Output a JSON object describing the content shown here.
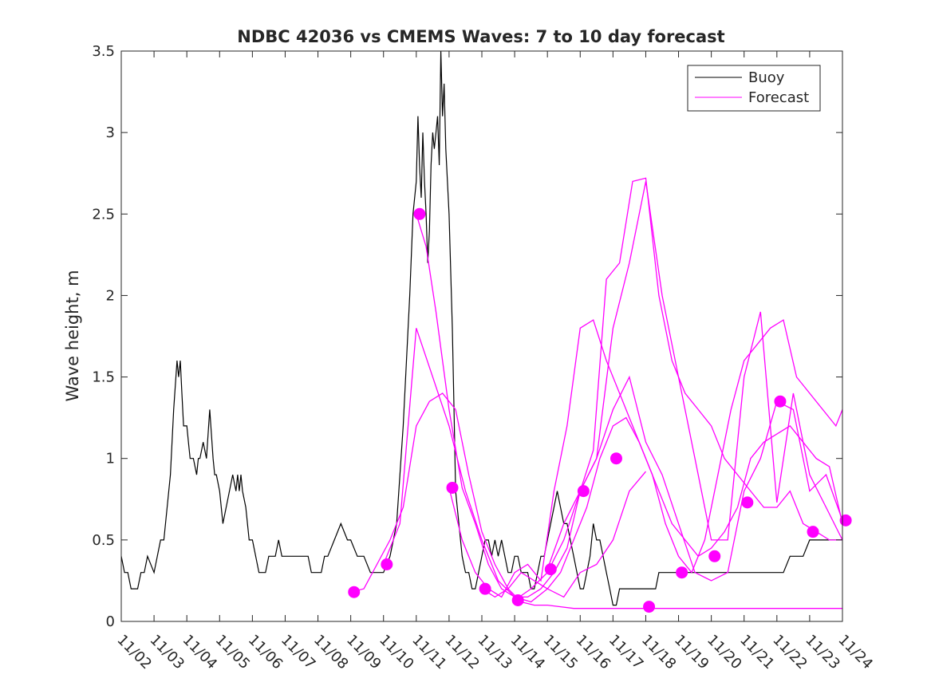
{
  "chart_data": {
    "type": "line",
    "title": "NDBC 42036 vs CMEMS Waves: 7 to 10 day forecast",
    "xlabel": "",
    "ylabel": "Wave height, m",
    "xlim": [
      0,
      22
    ],
    "ylim": [
      0,
      3.5
    ],
    "grid": false,
    "legend_location": "top-right",
    "x_ticks": [
      0,
      1,
      2,
      3,
      4,
      5,
      6,
      7,
      8,
      9,
      10,
      11,
      12,
      13,
      14,
      15,
      16,
      17,
      18,
      19,
      20,
      21,
      22
    ],
    "x_tick_labels": [
      "11/02",
      "11/03",
      "11/04",
      "11/05",
      "11/06",
      "11/07",
      "11/08",
      "11/09",
      "11/10",
      "11/11",
      "11/12",
      "11/13",
      "11/14",
      "11/15",
      "11/16",
      "11/17",
      "11/18",
      "11/19",
      "11/20",
      "11/21",
      "11/22",
      "11/23",
      "11/24"
    ],
    "y_ticks": [
      0,
      0.5,
      1,
      1.5,
      2,
      2.5,
      3,
      3.5
    ],
    "y_tick_labels": [
      "0",
      "0.5",
      "1",
      "1.5",
      "2",
      "2.5",
      "3",
      "3.5"
    ],
    "colors": {
      "buoy": "#000000",
      "forecast": "#ff00ff",
      "axes": "#262626"
    },
    "legend": [
      {
        "label": "Buoy",
        "series": "buoy"
      },
      {
        "label": "Forecast",
        "series": "forecast"
      }
    ],
    "buoy": {
      "name": "Buoy",
      "x": [
        0,
        0.1,
        0.2,
        0.3,
        0.5,
        0.6,
        0.7,
        0.8,
        1.0,
        1.1,
        1.2,
        1.3,
        1.4,
        1.5,
        1.6,
        1.7,
        1.75,
        1.8,
        1.85,
        1.9,
        2.0,
        2.05,
        2.1,
        2.2,
        2.3,
        2.35,
        2.4,
        2.5,
        2.6,
        2.7,
        2.8,
        2.85,
        2.9,
        3.0,
        3.1,
        3.2,
        3.3,
        3.4,
        3.5,
        3.55,
        3.6,
        3.65,
        3.7,
        3.8,
        3.9,
        4.0,
        4.1,
        4.2,
        4.3,
        4.4,
        4.5,
        4.6,
        4.7,
        4.8,
        4.9,
        5.0,
        5.1,
        5.2,
        5.3,
        5.4,
        5.5,
        5.6,
        5.7,
        5.8,
        5.9,
        6.0,
        6.1,
        6.2,
        6.3,
        6.5,
        6.7,
        6.9,
        7.0,
        7.2,
        7.4,
        7.6,
        7.8,
        8.0,
        8.2,
        8.4,
        8.6,
        8.8,
        8.9,
        9.0,
        9.05,
        9.1,
        9.15,
        9.2,
        9.25,
        9.3,
        9.35,
        9.4,
        9.45,
        9.5,
        9.55,
        9.6,
        9.65,
        9.7,
        9.75,
        9.8,
        9.85,
        9.9,
        10.0,
        10.1,
        10.15,
        10.2,
        10.3,
        10.4,
        10.5,
        10.6,
        10.7,
        10.8,
        10.9,
        11.0,
        11.1,
        11.2,
        11.3,
        11.4,
        11.5,
        11.6,
        11.7,
        11.8,
        11.9,
        12.0,
        12.1,
        12.2,
        12.3,
        12.4,
        12.5,
        12.6,
        12.7,
        12.8,
        12.9,
        13.0,
        13.1,
        13.2,
        13.3,
        13.4,
        13.5,
        13.6,
        13.7,
        13.8,
        13.9,
        14.0,
        14.1,
        14.2,
        14.3,
        14.4,
        14.5,
        14.6,
        14.7,
        14.8,
        14.9,
        15.0,
        15.1,
        15.2,
        15.3,
        15.4,
        15.5,
        15.6,
        15.7,
        15.8,
        15.9,
        16.0,
        16.1,
        16.2,
        16.3,
        16.4,
        16.5,
        16.6,
        16.7,
        16.8,
        16.9,
        17.0,
        17.1,
        17.2,
        17.3,
        17.4,
        17.5,
        17.6,
        17.7,
        17.8,
        17.9,
        18.0,
        18.2,
        18.4,
        18.6,
        18.8,
        19.0,
        19.2,
        19.4,
        19.6,
        19.8,
        20.0,
        20.2,
        20.4,
        20.6,
        20.8,
        21.0,
        21.2,
        21.4,
        21.6,
        21.8,
        22.0
      ],
      "y": [
        0.4,
        0.3,
        0.3,
        0.2,
        0.2,
        0.3,
        0.3,
        0.4,
        0.3,
        0.4,
        0.5,
        0.5,
        0.7,
        0.9,
        1.3,
        1.6,
        1.5,
        1.6,
        1.4,
        1.2,
        1.2,
        1.1,
        1.0,
        1.0,
        0.9,
        1.0,
        1.0,
        1.1,
        1.0,
        1.3,
        1.0,
        0.9,
        0.9,
        0.8,
        0.6,
        0.7,
        0.8,
        0.9,
        0.8,
        0.9,
        0.8,
        0.9,
        0.8,
        0.7,
        0.5,
        0.5,
        0.4,
        0.3,
        0.3,
        0.3,
        0.4,
        0.4,
        0.4,
        0.5,
        0.4,
        0.4,
        0.4,
        0.4,
        0.4,
        0.4,
        0.4,
        0.4,
        0.4,
        0.3,
        0.3,
        0.3,
        0.3,
        0.4,
        0.4,
        0.5,
        0.6,
        0.5,
        0.5,
        0.4,
        0.4,
        0.3,
        0.3,
        0.3,
        0.4,
        0.6,
        1.2,
        2.0,
        2.5,
        2.7,
        3.1,
        2.8,
        2.6,
        3.0,
        2.7,
        2.5,
        2.2,
        2.4,
        2.8,
        3.0,
        2.9,
        3.0,
        3.1,
        2.8,
        3.5,
        3.1,
        3.3,
        2.9,
        2.5,
        1.8,
        1.3,
        0.8,
        0.6,
        0.4,
        0.3,
        0.3,
        0.2,
        0.2,
        0.3,
        0.4,
        0.5,
        0.5,
        0.4,
        0.5,
        0.4,
        0.5,
        0.4,
        0.3,
        0.3,
        0.4,
        0.4,
        0.3,
        0.3,
        0.3,
        0.2,
        0.2,
        0.3,
        0.4,
        0.4,
        0.5,
        0.6,
        0.7,
        0.8,
        0.7,
        0.6,
        0.6,
        0.5,
        0.4,
        0.3,
        0.2,
        0.2,
        0.3,
        0.4,
        0.6,
        0.5,
        0.5,
        0.4,
        0.3,
        0.2,
        0.1,
        0.1,
        0.2,
        0.2,
        0.2,
        0.2,
        0.2,
        0.2,
        0.2,
        0.2,
        0.2,
        0.2,
        0.2,
        0.2,
        0.3,
        0.3,
        0.3,
        0.3,
        0.3,
        0.3,
        0.3,
        0.3,
        0.3,
        0.3,
        0.3,
        0.3,
        0.3,
        0.3,
        0.3,
        0.3,
        0.3,
        0.3,
        0.3,
        0.3,
        0.3,
        0.3,
        0.3,
        0.3,
        0.3,
        0.3,
        0.3,
        0.3,
        0.4,
        0.4,
        0.4,
        0.5,
        0.5,
        0.5,
        0.5,
        0.5,
        0.5
      ]
    },
    "forecast": {
      "name": "Forecast",
      "series": [
        {
          "x": [
            7.0,
            7.4,
            7.8,
            8.2,
            8.6,
            9.0,
            9.4,
            9.8,
            10.2,
            10.6,
            11.0,
            11.4,
            11.8,
            12.2,
            12.6,
            13.0,
            13.4,
            13.8,
            14.2,
            14.6,
            15.0,
            15.4,
            15.8,
            16.2,
            16.6,
            17.0,
            17.4,
            17.8,
            18.2,
            18.6,
            19.0,
            19.4,
            19.8,
            20.2,
            20.6,
            21.0,
            21.4,
            21.8,
            22.0
          ],
          "y": [
            0.18,
            0.2,
            0.35,
            0.5,
            0.7,
            1.2,
            1.35,
            1.4,
            1.3,
            0.9,
            0.55,
            0.35,
            0.2,
            0.12,
            0.1,
            0.1,
            0.09,
            0.08,
            0.08,
            0.08,
            0.08,
            0.08,
            0.08,
            0.08,
            0.08,
            0.08,
            0.08,
            0.08,
            0.08,
            0.08,
            0.08,
            0.08,
            0.08,
            0.08,
            0.08,
            0.08,
            0.08,
            0.08,
            0.08
          ]
        },
        {
          "x": [
            8.0,
            8.5,
            9.0,
            9.5,
            10.0,
            10.5,
            11.0,
            11.5,
            12.0,
            12.5,
            13.0,
            13.5,
            14.0,
            14.5,
            15.0,
            15.5,
            16.0
          ],
          "y": [
            0.35,
            0.6,
            1.8,
            1.5,
            1.2,
            0.8,
            0.5,
            0.25,
            0.15,
            0.12,
            0.2,
            0.15,
            0.3,
            0.35,
            0.5,
            0.8,
            0.92
          ]
        },
        {
          "x": [
            9.0,
            9.3,
            9.6,
            10.0,
            10.4,
            10.8,
            11.2,
            11.6,
            12.0,
            12.4,
            12.8,
            13.2,
            13.6,
            14.0,
            14.4,
            14.8,
            15.2,
            15.6,
            16.0,
            16.4,
            16.8,
            17.2,
            17.6,
            18.0,
            18.4,
            18.8,
            19.2,
            19.6,
            20.0,
            20.4,
            20.8,
            21.2,
            21.6,
            22.0
          ],
          "y": [
            2.5,
            2.3,
            1.9,
            1.3,
            0.82,
            0.6,
            0.35,
            0.2,
            0.15,
            0.15,
            0.2,
            0.3,
            0.45,
            0.8,
            1.05,
            2.1,
            2.2,
            2.7,
            2.72,
            2.0,
            1.6,
            1.4,
            1.3,
            1.2,
            1.0,
            0.9,
            0.8,
            0.7,
            0.7,
            0.8,
            0.6,
            0.55,
            0.5,
            0.5
          ]
        },
        {
          "x": [
            10.0,
            10.4,
            10.8,
            11.2,
            11.6,
            12.0,
            12.4,
            12.8,
            13.2,
            13.6,
            14.0,
            14.4,
            14.8,
            15.2,
            15.6,
            16.0,
            16.4,
            16.8,
            17.2,
            17.6,
            18.0,
            18.4,
            18.8,
            19.2,
            19.6,
            20.0,
            20.4,
            20.8,
            21.2,
            21.6,
            22.0
          ],
          "y": [
            0.82,
            0.5,
            0.3,
            0.2,
            0.15,
            0.3,
            0.35,
            0.25,
            0.8,
            1.2,
            1.8,
            1.85,
            1.6,
            1.4,
            1.2,
            1.0,
            0.8,
            0.6,
            0.5,
            0.4,
            0.45,
            0.55,
            0.7,
            1.0,
            1.1,
            1.15,
            1.2,
            1.1,
            1.0,
            0.95,
            0.6
          ]
        },
        {
          "x": [
            11.0,
            11.4,
            11.8,
            12.2,
            12.6,
            13.0,
            13.4,
            13.8,
            14.2,
            14.6,
            15.0,
            15.4,
            15.8,
            16.2,
            16.6,
            17.0,
            17.4,
            17.8,
            18.2,
            18.6,
            19.0,
            19.4,
            19.8,
            20.2,
            20.6,
            21.0,
            21.4,
            21.8,
            22.0
          ],
          "y": [
            0.2,
            0.15,
            0.2,
            0.3,
            0.25,
            0.2,
            0.3,
            0.5,
            0.7,
            1.0,
            1.2,
            1.25,
            1.1,
            0.9,
            0.6,
            0.4,
            0.3,
            0.5,
            0.9,
            1.3,
            1.6,
            1.7,
            1.8,
            1.85,
            1.5,
            1.4,
            1.3,
            1.2,
            1.3
          ]
        },
        {
          "x": [
            12.0,
            12.5,
            13.0,
            13.5,
            14.0,
            14.5,
            15.0,
            15.5,
            16.0,
            16.5,
            17.0,
            17.5,
            18.0,
            18.5,
            19.0,
            19.5,
            20.0,
            20.5,
            21.0,
            21.5,
            22.0
          ],
          "y": [
            0.13,
            0.2,
            0.3,
            0.5,
            0.8,
            1.0,
            1.8,
            2.2,
            2.7,
            2.0,
            1.5,
            1.0,
            0.5,
            0.5,
            1.5,
            1.9,
            0.73,
            1.4,
            0.9,
            0.7,
            0.5
          ]
        },
        {
          "x": [
            13.0,
            13.5,
            14.0,
            14.5,
            15.0,
            15.5,
            16.0,
            16.5,
            17.0,
            17.5,
            18.0,
            18.5,
            19.0,
            19.5,
            20.0,
            20.5,
            21.0,
            21.5,
            22.0
          ],
          "y": [
            0.32,
            0.6,
            0.8,
            1.0,
            1.3,
            1.5,
            1.1,
            0.9,
            0.6,
            0.3,
            0.25,
            0.3,
            0.8,
            1.0,
            1.35,
            1.3,
            0.8,
            0.9,
            0.62
          ]
        }
      ],
      "markers": {
        "x": [
          7.1,
          8.1,
          9.1,
          10.1,
          11.1,
          12.1,
          13.1,
          14.1,
          15.1,
          16.1,
          17.1,
          18.1,
          19.1,
          20.1,
          21.1,
          22.1
        ],
        "y": [
          0.18,
          0.35,
          2.5,
          0.82,
          0.2,
          0.13,
          0.32,
          0.8,
          1.0,
          0.09,
          0.3,
          0.4,
          0.73,
          1.35,
          0.55,
          0.62
        ]
      }
    }
  }
}
